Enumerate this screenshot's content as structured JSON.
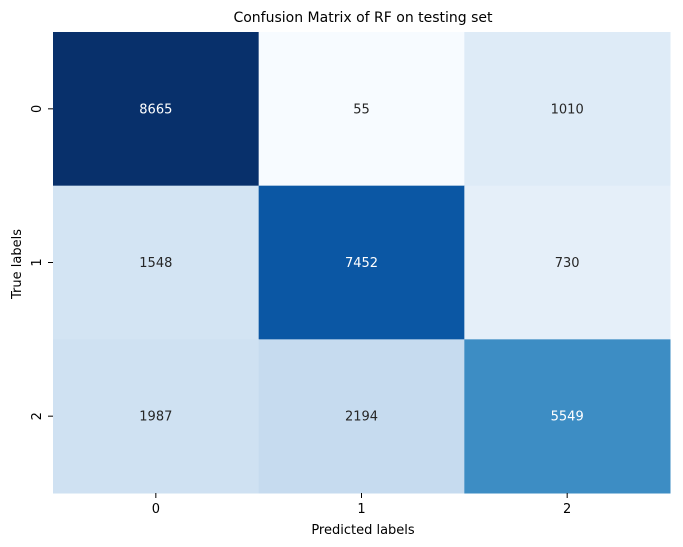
{
  "chart_data": {
    "type": "heatmap",
    "title": "Confusion Matrix of RF on testing set",
    "xlabel": "Predicted labels",
    "ylabel": "True labels",
    "x_categories": [
      "0",
      "1",
      "2"
    ],
    "y_categories": [
      "0",
      "1",
      "2"
    ],
    "values": [
      [
        8665,
        55,
        1010
      ],
      [
        1548,
        7452,
        730
      ],
      [
        1987,
        2194,
        5549
      ]
    ],
    "colormap": "Blues",
    "colorbar": false,
    "grid": false,
    "cell_colors": [
      [
        "#08306b",
        "#f7fbff",
        "#deebf7"
      ],
      [
        "#d3e4f3",
        "#0b57a4",
        "#e5eff9"
      ],
      [
        "#cfe1f2",
        "#c6dbef",
        "#3d8dc4"
      ]
    ],
    "text_colors": [
      [
        "#ffffff",
        "#262626",
        "#262626"
      ],
      [
        "#262626",
        "#ffffff",
        "#262626"
      ],
      [
        "#262626",
        "#262626",
        "#ffffff"
      ]
    ]
  }
}
